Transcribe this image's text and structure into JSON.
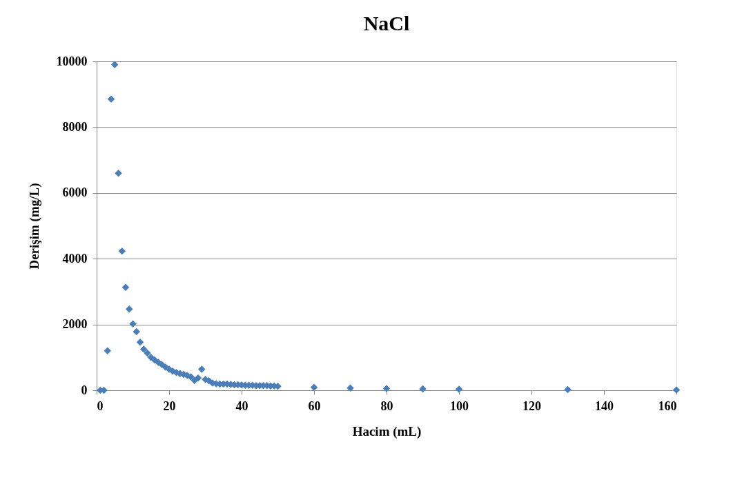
{
  "chart_data": {
    "type": "scatter",
    "title": "NaCl",
    "xlabel": "Hacim (mL)",
    "ylabel": "Derişim (mg/L)",
    "x": [
      1,
      2,
      3,
      4,
      5,
      6,
      7,
      8,
      9,
      10,
      11,
      12,
      13,
      14,
      15,
      16,
      17,
      18,
      19,
      20,
      21,
      22,
      23,
      24,
      25,
      26,
      27,
      28,
      29,
      30,
      31,
      32,
      33,
      34,
      35,
      36,
      37,
      38,
      39,
      40,
      41,
      42,
      43,
      44,
      45,
      46,
      47,
      48,
      49,
      50,
      60,
      70,
      80,
      90,
      100,
      130,
      160
    ],
    "series": [
      {
        "color": "#4a7ebb",
        "values": [
          0,
          0,
          1200,
          8850,
          9900,
          6600,
          4230,
          3130,
          2470,
          2020,
          1780,
          1460,
          1250,
          1130,
          1000,
          920,
          850,
          780,
          700,
          640,
          580,
          540,
          510,
          480,
          450,
          410,
          300,
          370,
          640,
          330,
          290,
          220,
          200,
          190,
          190,
          190,
          180,
          170,
          170,
          160,
          150,
          150,
          150,
          140,
          140,
          140,
          140,
          130,
          130,
          120,
          90,
          70,
          50,
          40,
          30,
          20,
          10
        ]
      }
    ],
    "xlim": [
      0,
      160
    ],
    "xticks": [
      0,
      20,
      40,
      60,
      80,
      100,
      120,
      140,
      160
    ],
    "ylim": [
      0,
      10000
    ],
    "yticks": [
      0,
      2000,
      4000,
      6000,
      8000,
      10000
    ],
    "grid": "y",
    "marker": "diamond",
    "legend": false
  }
}
